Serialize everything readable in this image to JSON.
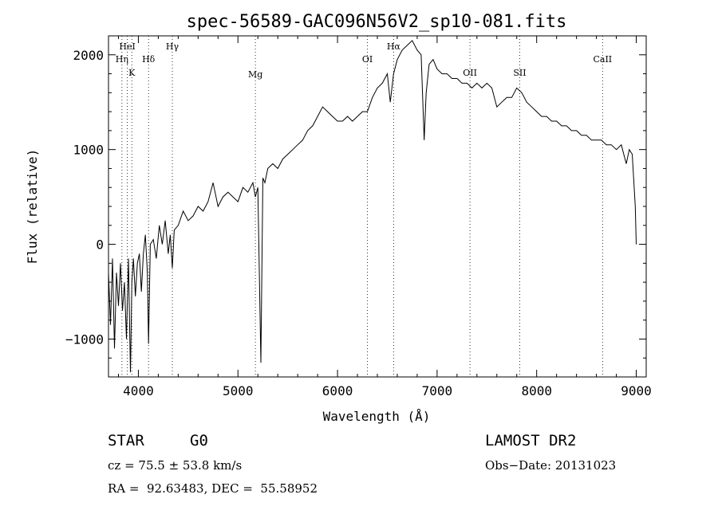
{
  "chart_data": {
    "type": "line",
    "title": "spec-56589-GAC096N56V2_sp10-081.fits",
    "xlabel": "Wavelength (Å)",
    "ylabel": "Flux (relative)",
    "xlim": [
      3700,
      9100
    ],
    "ylim": [
      -1400,
      2200
    ],
    "xticks": [
      4000,
      5000,
      6000,
      7000,
      8000,
      9000
    ],
    "yticks": [
      -1000,
      0,
      1000,
      2000
    ],
    "tick_labels": {
      "x": [
        "4000",
        "5000",
        "6000",
        "7000",
        "8000",
        "9000"
      ],
      "y": [
        "−1000",
        "0",
        "1000",
        "2000"
      ]
    },
    "grid": false,
    "line_color": "#000000",
    "spectral_lines": [
      {
        "name": "HeI",
        "wavelength": 3889
      },
      {
        "name": "Hη",
        "wavelength": 3835
      },
      {
        "name": "K",
        "wavelength": 3934
      },
      {
        "name": "Hδ",
        "wavelength": 4102
      },
      {
        "name": "Hγ",
        "wavelength": 4341
      },
      {
        "name": "Mg",
        "wavelength": 5175
      },
      {
        "name": "OI",
        "wavelength": 6300
      },
      {
        "name": "Hα",
        "wavelength": 6563
      },
      {
        "name": "OII",
        "wavelength": 7330
      },
      {
        "name": "SII",
        "wavelength": 7830
      },
      {
        "name": "CaII",
        "wavelength": 8662
      }
    ],
    "series": [
      {
        "x": [
          3700,
          3720,
          3740,
          3760,
          3780,
          3800,
          3820,
          3840,
          3860,
          3880,
          3900,
          3920,
          3935,
          3950,
          3970,
          3990,
          4010,
          4030,
          4050,
          4070,
          4090,
          4102,
          4120,
          4150,
          4180,
          4210,
          4240,
          4270,
          4300,
          4320,
          4341,
          4360,
          4400,
          4450,
          4500,
          4550,
          4600,
          4650,
          4700,
          4750,
          4800,
          4850,
          4900,
          4950,
          5000,
          5050,
          5100,
          5150,
          5175,
          5200,
          5230,
          5250,
          5270,
          5300,
          5350,
          5400,
          5450,
          5500,
          5550,
          5600,
          5650,
          5700,
          5750,
          5800,
          5850,
          5900,
          5950,
          6000,
          6050,
          6100,
          6150,
          6200,
          6250,
          6300,
          6350,
          6400,
          6450,
          6500,
          6530,
          6563,
          6600,
          6650,
          6700,
          6750,
          6800,
          6840,
          6870,
          6890,
          6920,
          6960,
          7000,
          7050,
          7100,
          7150,
          7200,
          7250,
          7300,
          7350,
          7400,
          7450,
          7500,
          7550,
          7600,
          7650,
          7700,
          7750,
          7800,
          7850,
          7900,
          7950,
          8000,
          8050,
          8100,
          8150,
          8200,
          8250,
          8300,
          8350,
          8400,
          8450,
          8500,
          8550,
          8600,
          8650,
          8700,
          8750,
          8800,
          8850,
          8900,
          8930,
          8960,
          8990,
          9000
        ],
        "y": [
          -300,
          -850,
          -150,
          -1100,
          -300,
          -650,
          -200,
          -700,
          -400,
          -1000,
          -150,
          -1350,
          -400,
          -150,
          -550,
          -200,
          -100,
          -500,
          -100,
          100,
          -300,
          -1050,
          0,
          50,
          -150,
          200,
          0,
          250,
          -100,
          100,
          -250,
          150,
          200,
          350,
          250,
          300,
          400,
          350,
          450,
          650,
          400,
          500,
          550,
          500,
          450,
          600,
          550,
          650,
          500,
          600,
          -1250,
          700,
          650,
          800,
          850,
          800,
          900,
          950,
          1000,
          1050,
          1100,
          1200,
          1250,
          1350,
          1450,
          1400,
          1350,
          1300,
          1300,
          1350,
          1300,
          1350,
          1400,
          1400,
          1550,
          1650,
          1700,
          1800,
          1500,
          1800,
          1950,
          2050,
          2100,
          2150,
          2050,
          2000,
          1100,
          1600,
          1900,
          1950,
          1850,
          1800,
          1800,
          1750,
          1750,
          1700,
          1700,
          1650,
          1700,
          1650,
          1700,
          1650,
          1450,
          1500,
          1550,
          1550,
          1650,
          1600,
          1500,
          1450,
          1400,
          1350,
          1350,
          1300,
          1300,
          1250,
          1250,
          1200,
          1200,
          1150,
          1150,
          1100,
          1100,
          1100,
          1050,
          1050,
          1000,
          1050,
          850,
          1000,
          950,
          400,
          0
        ]
      }
    ]
  },
  "info": {
    "object_class": "STAR",
    "subclass": "G0",
    "survey": "LAMOST DR2",
    "redshift": "cz = 75.5 ± 53.8 km/s",
    "obs_date": "Obs−Date: 20131023",
    "coords": "RA =  92.63483, DEC =  55.58952"
  }
}
